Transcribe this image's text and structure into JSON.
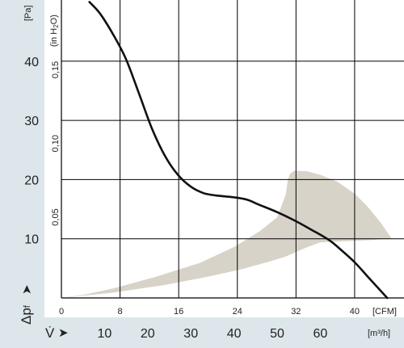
{
  "chart_data": {
    "type": "line",
    "units": {
      "pressure_pa": "[Pa]",
      "pressure_inh2o_prefix": "(in H",
      "pressure_inh2o_sub": "2",
      "pressure_inh2o_suffix": "O)",
      "flow_cfm": "[CFM]",
      "flow_m3h": "[m³/h]"
    },
    "y_axis_symbol": "Δp",
    "y_axis_symbol_sub": "f",
    "x_axis_symbol": "V̇",
    "arrow_glyph": "➤",
    "y_pa_ticks": [
      {
        "value": 10,
        "label": "10"
      },
      {
        "value": 20,
        "label": "20"
      },
      {
        "value": 30,
        "label": "30"
      },
      {
        "value": 40,
        "label": "40"
      }
    ],
    "y_inh2o_ticks": [
      {
        "value": 0.05,
        "label": "0,05"
      },
      {
        "value": 0.1,
        "label": "0,10"
      },
      {
        "value": 0.15,
        "label": "0,15"
      }
    ],
    "x_cfm_ticks": [
      {
        "value": 0,
        "label": "0"
      },
      {
        "value": 8,
        "label": "8"
      },
      {
        "value": 16,
        "label": "16"
      },
      {
        "value": 24,
        "label": "24"
      },
      {
        "value": 32,
        "label": "32"
      },
      {
        "value": 40,
        "label": "40"
      }
    ],
    "x_m3h_ticks": [
      {
        "value": 10,
        "label": "10"
      },
      {
        "value": 20,
        "label": "20"
      },
      {
        "value": 30,
        "label": "30"
      },
      {
        "value": 40,
        "label": "40"
      },
      {
        "value": 50,
        "label": "50"
      },
      {
        "value": 60,
        "label": "60"
      }
    ],
    "x_range_m3h": [
      0,
      77
    ],
    "y_range_pa": [
      0,
      50
    ],
    "grid": true,
    "series": [
      {
        "color": "#111111",
        "points_m3h_pa": [
          [
            6.5,
            50
          ],
          [
            9,
            48
          ],
          [
            12,
            44.5
          ],
          [
            15,
            40.3
          ],
          [
            18,
            34.5
          ],
          [
            21,
            28.6
          ],
          [
            24,
            24
          ],
          [
            27,
            20.8
          ],
          [
            30,
            18.8
          ],
          [
            33,
            17.7
          ],
          [
            36,
            17.3
          ],
          [
            40,
            17
          ],
          [
            43,
            16.6
          ],
          [
            46,
            15.7
          ],
          [
            50,
            14.5
          ],
          [
            54,
            13.1
          ],
          [
            58,
            11.5
          ],
          [
            62,
            9.8
          ],
          [
            65,
            8
          ],
          [
            68,
            6
          ],
          [
            71,
            3.6
          ],
          [
            73.5,
            1.6
          ],
          [
            75.5,
            0
          ]
        ]
      }
    ],
    "operating_range": {
      "color": "#d8d3c8",
      "polygon_m3h_pa": [
        [
          0,
          0
        ],
        [
          12,
          0.9
        ],
        [
          24,
          2.2
        ],
        [
          34,
          3.6
        ],
        [
          42,
          4.9
        ],
        [
          48,
          6.1
        ],
        [
          52,
          7.0
        ],
        [
          56,
          8.3
        ],
        [
          60,
          9.4
        ],
        [
          66,
          9.6
        ],
        [
          72,
          9.8
        ],
        [
          76.5,
          10.1
        ],
        [
          74,
          12.7
        ],
        [
          71,
          15.4
        ],
        [
          68,
          17.6
        ],
        [
          64,
          19.6
        ],
        [
          60,
          20.8
        ],
        [
          57,
          21.4
        ],
        [
          54,
          21.5
        ],
        [
          53,
          21
        ],
        [
          52.5,
          20
        ],
        [
          52,
          17.5
        ],
        [
          50,
          13.6
        ],
        [
          46,
          11.3
        ],
        [
          40,
          8.6
        ],
        [
          32,
          5.9
        ],
        [
          22,
          3.6
        ],
        [
          12,
          1.6
        ],
        [
          5,
          0.5
        ]
      ]
    }
  }
}
